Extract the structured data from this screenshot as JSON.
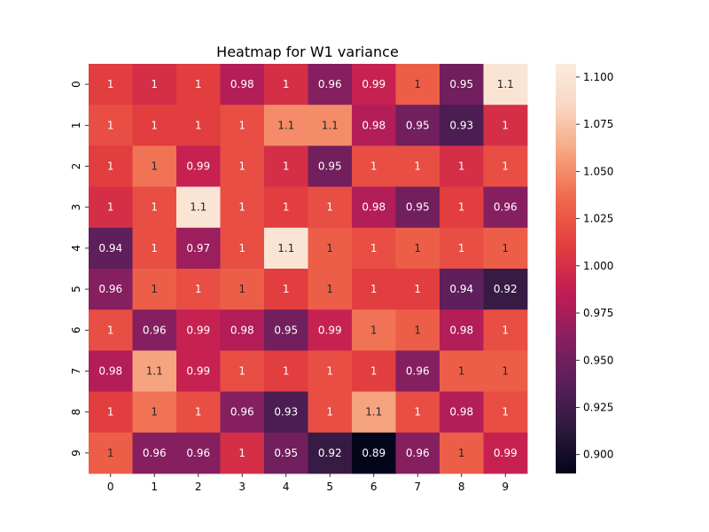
{
  "chart_data": {
    "type": "heatmap",
    "title": "Heatmap for W1 variance",
    "x_labels": [
      "0",
      "1",
      "2",
      "3",
      "4",
      "5",
      "6",
      "7",
      "8",
      "9"
    ],
    "y_labels": [
      "0",
      "1",
      "2",
      "3",
      "4",
      "5",
      "6",
      "7",
      "8",
      "9"
    ],
    "values": [
      [
        1.01,
        1.0,
        1.01,
        0.98,
        1.0,
        0.96,
        0.99,
        1.03,
        0.95,
        1.1
      ],
      [
        1.02,
        1.01,
        1.01,
        1.02,
        1.05,
        1.05,
        0.98,
        0.95,
        0.93,
        1.0
      ],
      [
        1.01,
        1.04,
        0.99,
        1.02,
        1.0,
        0.95,
        1.02,
        1.02,
        1.0,
        1.02
      ],
      [
        1.0,
        1.02,
        1.1,
        1.02,
        1.01,
        1.02,
        0.98,
        0.95,
        1.01,
        0.96
      ],
      [
        0.94,
        1.02,
        0.97,
        1.02,
        1.1,
        1.03,
        1.02,
        1.03,
        1.02,
        1.03
      ],
      [
        0.96,
        1.03,
        1.02,
        1.03,
        1.01,
        1.03,
        1.01,
        1.01,
        0.94,
        0.92
      ],
      [
        1.02,
        0.96,
        0.99,
        0.98,
        0.95,
        0.99,
        1.04,
        1.03,
        0.98,
        1.02
      ],
      [
        0.98,
        1.06,
        0.99,
        1.02,
        1.01,
        1.02,
        1.01,
        0.96,
        1.03,
        1.03
      ],
      [
        1.01,
        1.04,
        1.02,
        0.96,
        0.93,
        1.02,
        1.06,
        1.02,
        0.98,
        1.02
      ],
      [
        1.03,
        0.96,
        0.96,
        1.0,
        0.95,
        0.92,
        0.89,
        0.96,
        1.03,
        0.99
      ]
    ],
    "annotations": [
      [
        "1",
        "1",
        "1",
        "0.98",
        "1",
        "0.96",
        "0.99",
        "1",
        "0.95",
        "1.1"
      ],
      [
        "1",
        "1",
        "1",
        "1",
        "1.1",
        "1.1",
        "0.98",
        "0.95",
        "0.93",
        "1"
      ],
      [
        "1",
        "1",
        "0.99",
        "1",
        "1",
        "0.95",
        "1",
        "1",
        "1",
        "1"
      ],
      [
        "1",
        "1",
        "1.1",
        "1",
        "1",
        "1",
        "0.98",
        "0.95",
        "1",
        "0.96"
      ],
      [
        "0.94",
        "1",
        "0.97",
        "1",
        "1.1",
        "1",
        "1",
        "1",
        "1",
        "1"
      ],
      [
        "0.96",
        "1",
        "1",
        "1",
        "1",
        "1",
        "1",
        "1",
        "0.94",
        "0.92"
      ],
      [
        "1",
        "0.96",
        "0.99",
        "0.98",
        "0.95",
        "0.99",
        "1",
        "1",
        "0.98",
        "1"
      ],
      [
        "0.98",
        "1.1",
        "0.99",
        "1",
        "1",
        "1",
        "1",
        "0.96",
        "1",
        "1"
      ],
      [
        "1",
        "1",
        "1",
        "0.96",
        "0.93",
        "1",
        "1.1",
        "1",
        "0.98",
        "1"
      ],
      [
        "1",
        "0.96",
        "0.96",
        "1",
        "0.95",
        "0.92",
        "0.89",
        "0.96",
        "1",
        "0.99"
      ]
    ],
    "vmin": 0.89,
    "vmax": 1.107,
    "colorbar_ticks": [
      "0.900",
      "0.925",
      "0.950",
      "0.975",
      "1.000",
      "1.025",
      "1.050",
      "1.075",
      "1.100"
    ],
    "colormap": "rocket",
    "colormap_stops": [
      "#03051a",
      "#2d1a3e",
      "#5a1f5c",
      "#8a1f5f",
      "#c21c55",
      "#e33e3e",
      "#f0664a",
      "#f6a17b",
      "#f9d6c1",
      "#faebdd"
    ]
  }
}
